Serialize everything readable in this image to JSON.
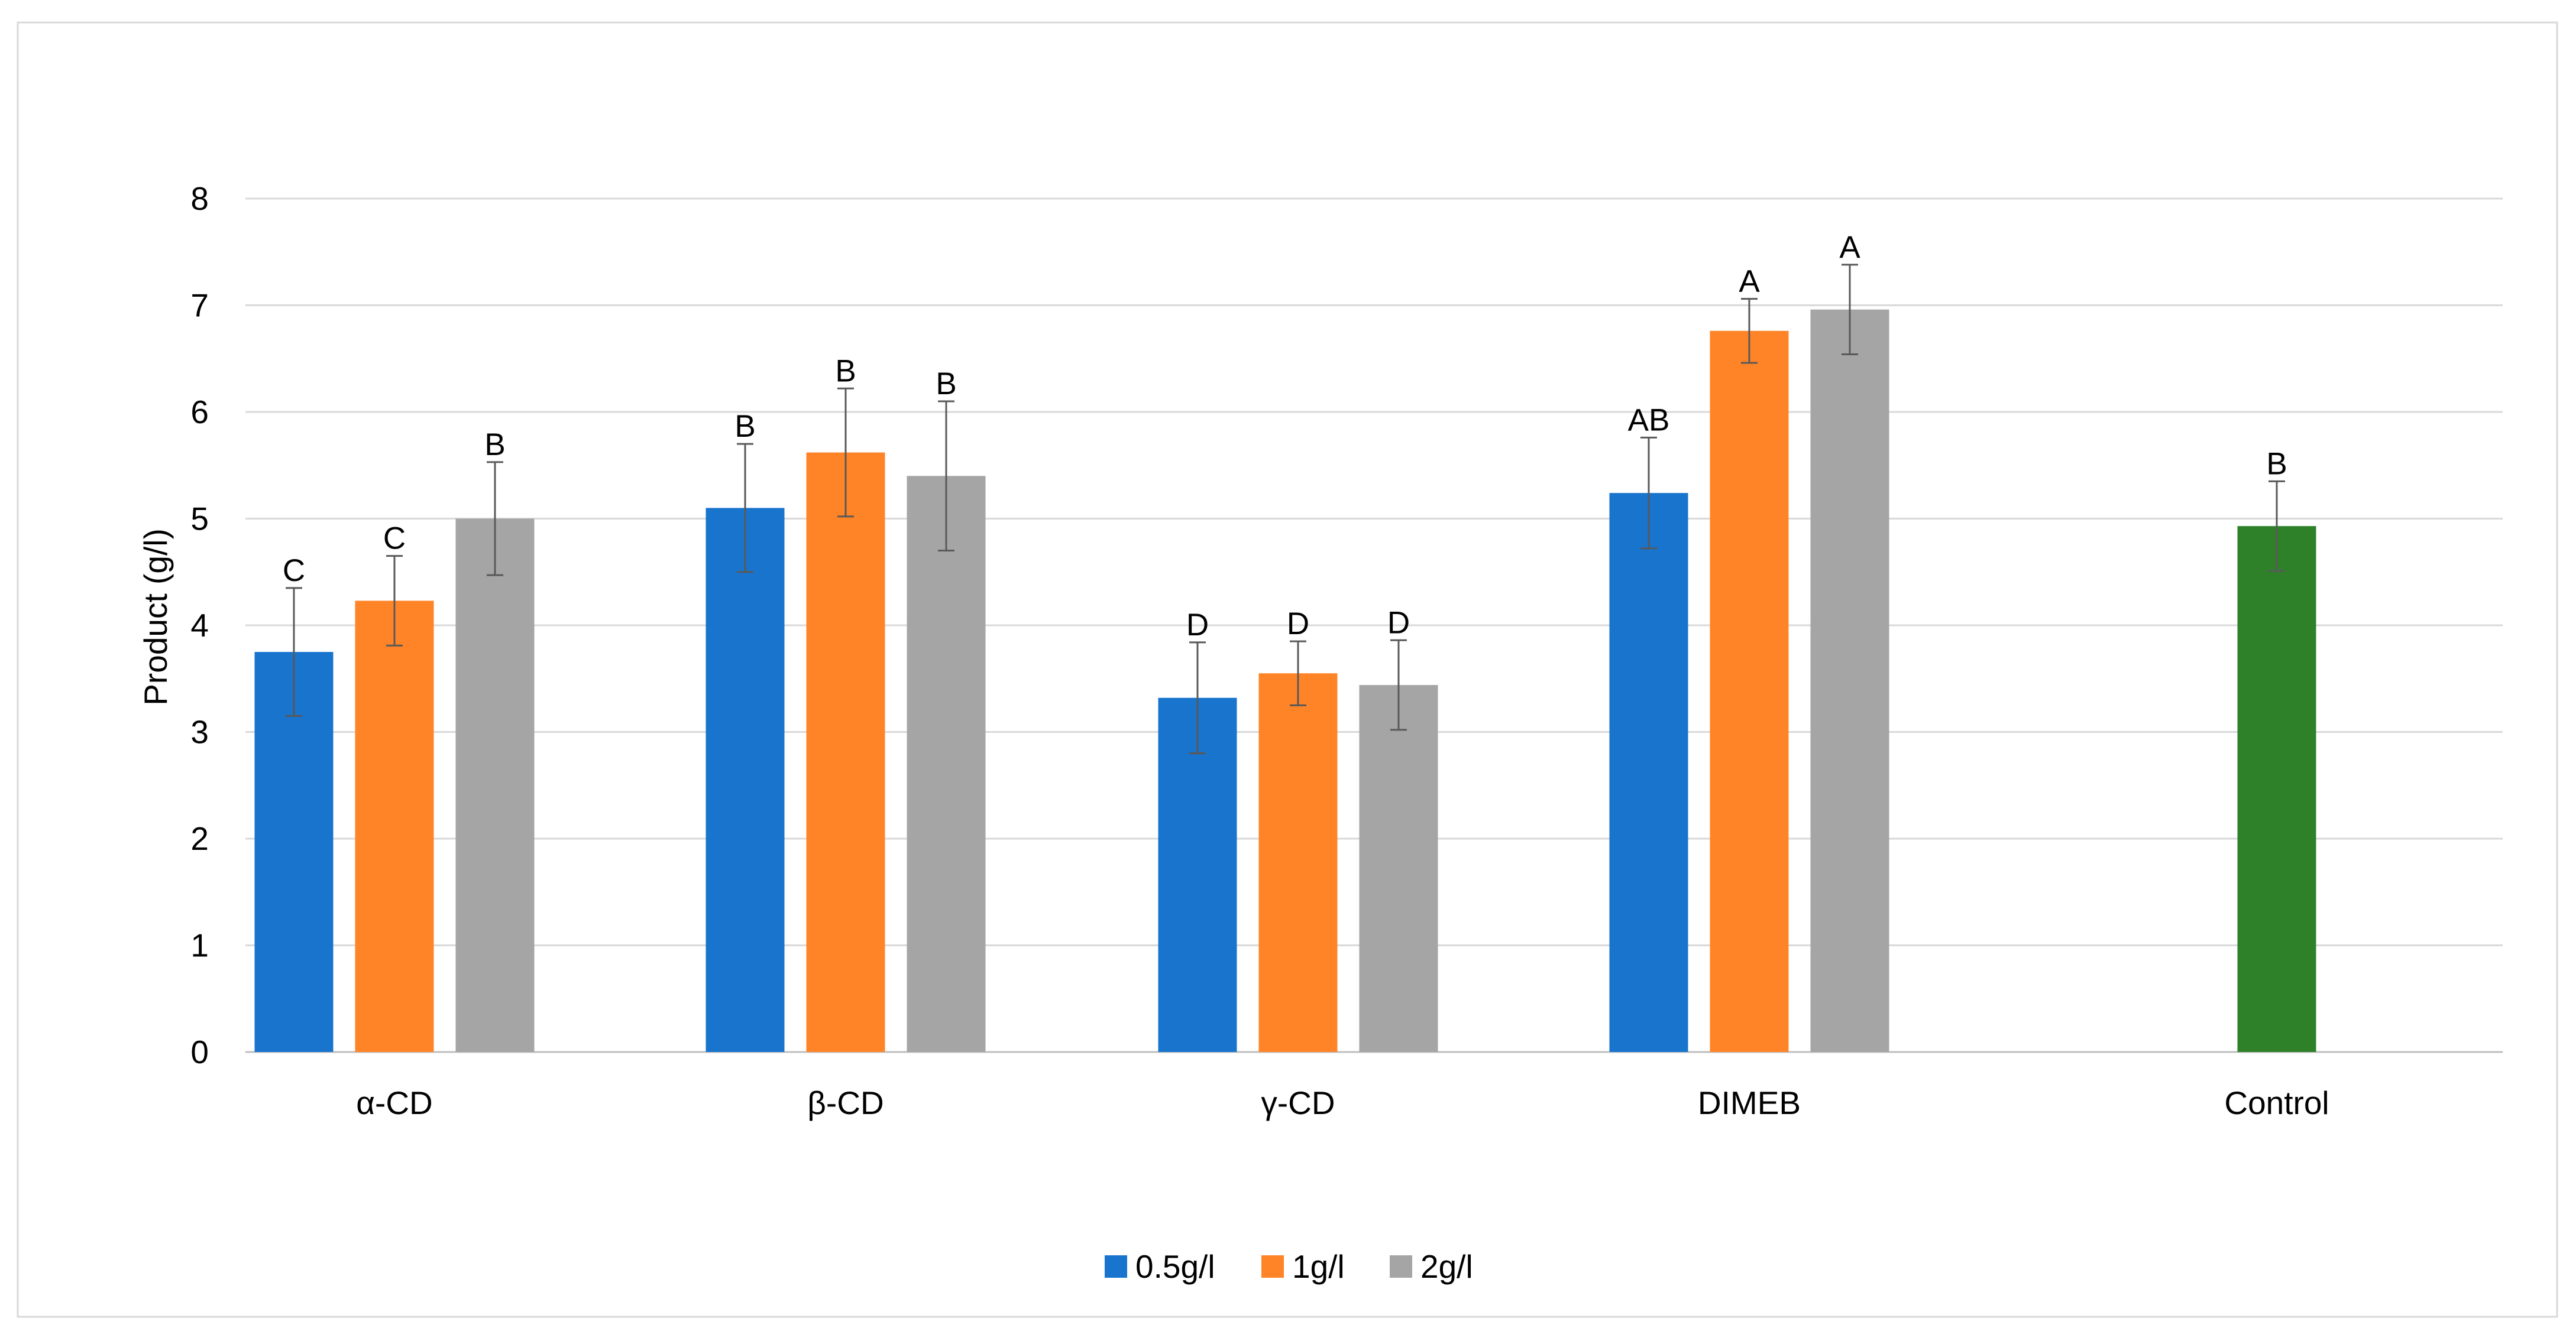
{
  "chart_data": {
    "type": "bar",
    "title": "",
    "xlabel": "",
    "ylabel": "Product (g/l)",
    "ylim": [
      0,
      8
    ],
    "yticks": [
      0,
      1,
      2,
      3,
      4,
      5,
      6,
      7,
      8
    ],
    "grid": true,
    "legend_position": "bottom",
    "categories": [
      "α-CD",
      "β-CD",
      "γ-CD",
      "DIMEB",
      "Control"
    ],
    "series": [
      {
        "name": "0.5g/l",
        "color": "#1874CD",
        "values": [
          3.75,
          5.1,
          3.32,
          5.24,
          null
        ],
        "errors": [
          0.6,
          0.6,
          0.52,
          0.52,
          null
        ],
        "labels": [
          "C",
          "B",
          "D",
          "AB",
          null
        ]
      },
      {
        "name": "1g/l",
        "color": "#FF8427",
        "values": [
          4.23,
          5.62,
          3.55,
          6.76,
          null
        ],
        "errors": [
          0.42,
          0.6,
          0.3,
          0.3,
          null
        ],
        "labels": [
          "C",
          "B",
          "D",
          "A",
          null
        ]
      },
      {
        "name": "2g/l",
        "color": "#A5A5A5",
        "values": [
          5.0,
          5.4,
          3.44,
          6.96,
          null
        ],
        "errors": [
          0.53,
          0.7,
          0.42,
          0.42,
          null
        ],
        "labels": [
          "B",
          "B",
          "D",
          "A",
          null
        ]
      }
    ],
    "control": {
      "category": "Control",
      "color": "#2E8129",
      "value": 4.93,
      "error": 0.42,
      "label": "B"
    }
  }
}
